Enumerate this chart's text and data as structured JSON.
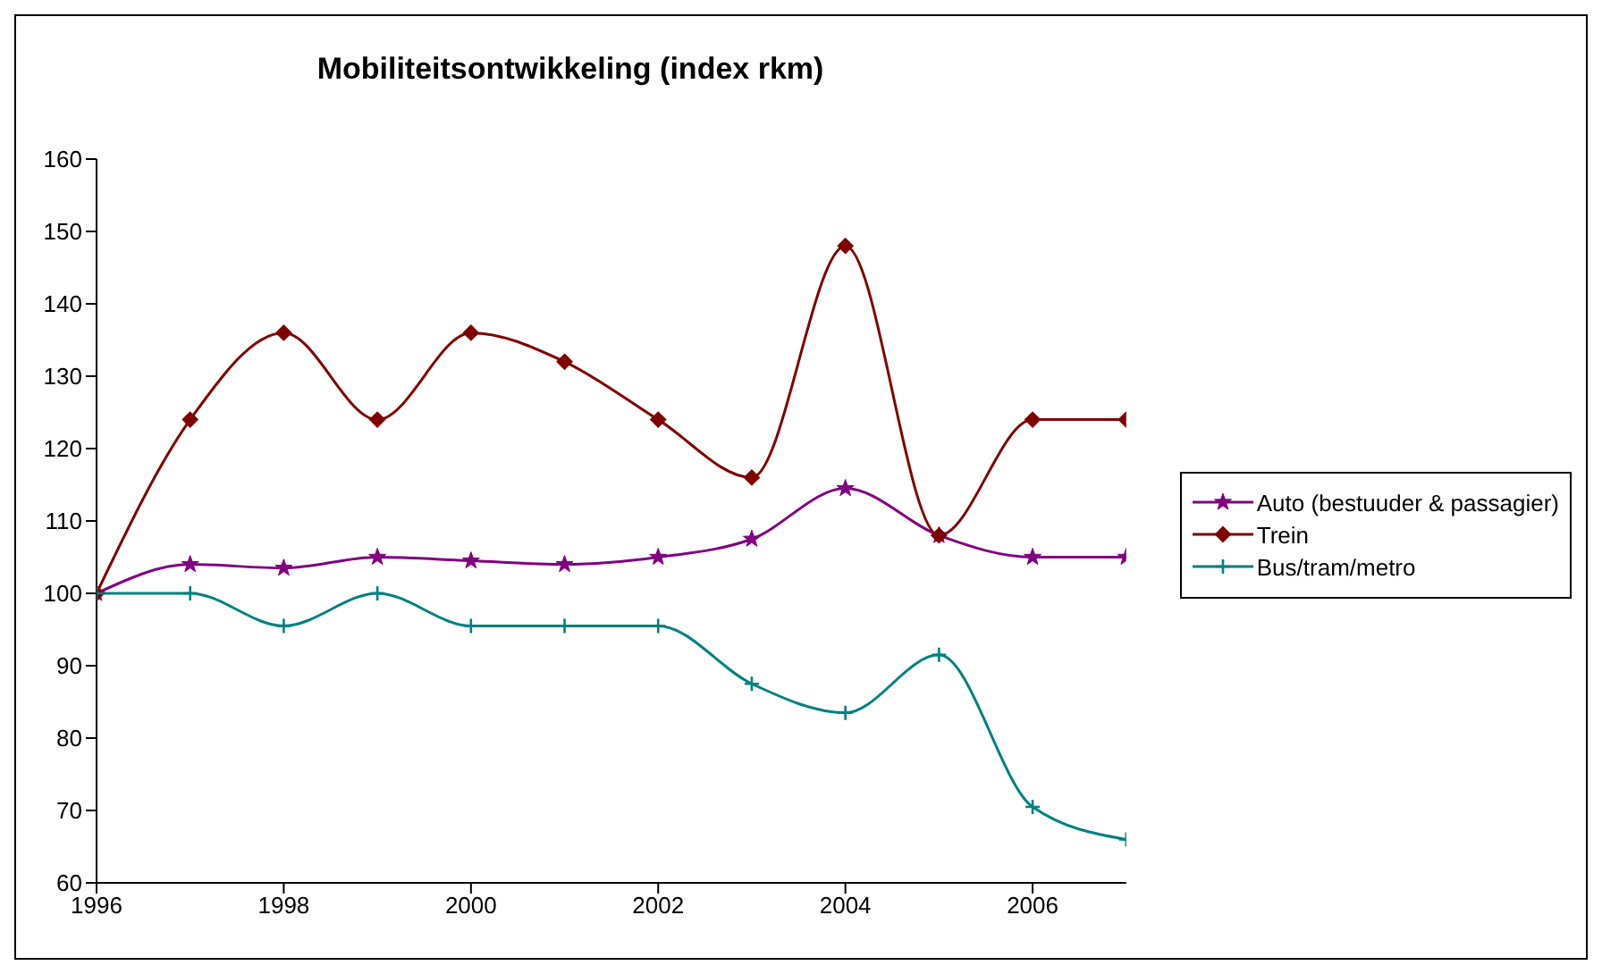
{
  "chart_data": {
    "type": "line",
    "title": "Mobiliteitsontwikkeling (index rkm)",
    "x": [
      1996,
      1997,
      1998,
      1999,
      2000,
      2001,
      2002,
      2003,
      2004,
      2005,
      2006,
      2007
    ],
    "series": [
      {
        "name": "Auto (bestuuder & passagier)",
        "color": "#800080",
        "marker": "star",
        "values": [
          100,
          104,
          103.5,
          105,
          104.5,
          104,
          105,
          107.5,
          114.5,
          108,
          105,
          105
        ]
      },
      {
        "name": "Trein",
        "color": "#800000",
        "marker": "diamond",
        "values": [
          100,
          124,
          136,
          124,
          136,
          132,
          124,
          116,
          148,
          108,
          124,
          124
        ]
      },
      {
        "name": "Bus/tram/metro",
        "color": "#008080",
        "marker": "cross",
        "values": [
          100,
          100,
          95.5,
          100,
          95.5,
          95.5,
          95.5,
          87.5,
          83.5,
          91.5,
          70.5,
          66
        ]
      }
    ],
    "xlim": [
      1996,
      2007
    ],
    "xticks": [
      1996,
      1998,
      2000,
      2002,
      2004,
      2006
    ],
    "ylim": [
      60,
      160
    ],
    "yticks": [
      60,
      70,
      80,
      90,
      100,
      110,
      120,
      130,
      140,
      150,
      160
    ],
    "grid": false,
    "legend": "right",
    "line_style": "solid"
  }
}
